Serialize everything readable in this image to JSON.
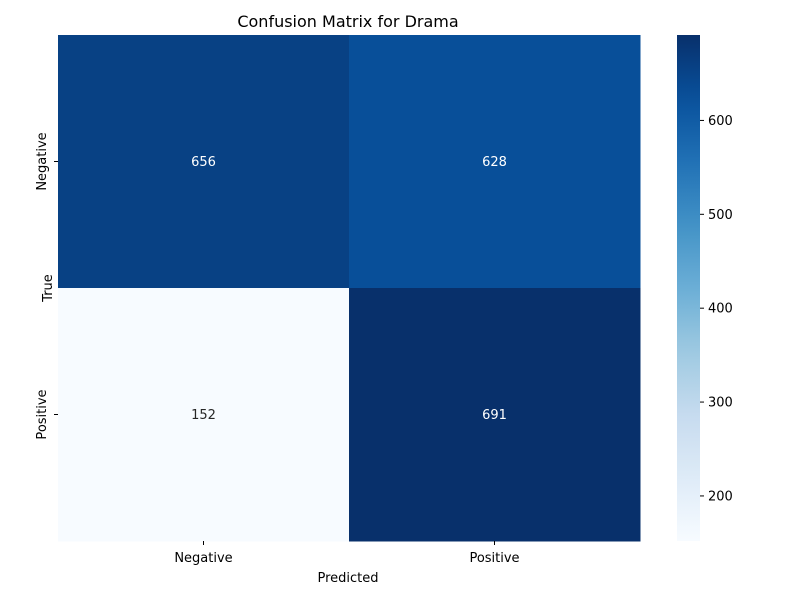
{
  "chart_data": {
    "type": "heatmap",
    "title": "Confusion Matrix for Drama",
    "xlabel": "Predicted",
    "ylabel": "True",
    "x_categories": [
      "Negative",
      "Positive"
    ],
    "y_categories": [
      "Negative",
      "Positive"
    ],
    "values": [
      [
        656,
        628
      ],
      [
        152,
        691
      ]
    ],
    "colormap": "Blues",
    "colorbar": {
      "range": [
        152,
        691
      ],
      "ticks": [
        200,
        300,
        400,
        500,
        600
      ]
    },
    "colors": {
      "min": "#f7fbff",
      "max": "#08306b"
    }
  }
}
